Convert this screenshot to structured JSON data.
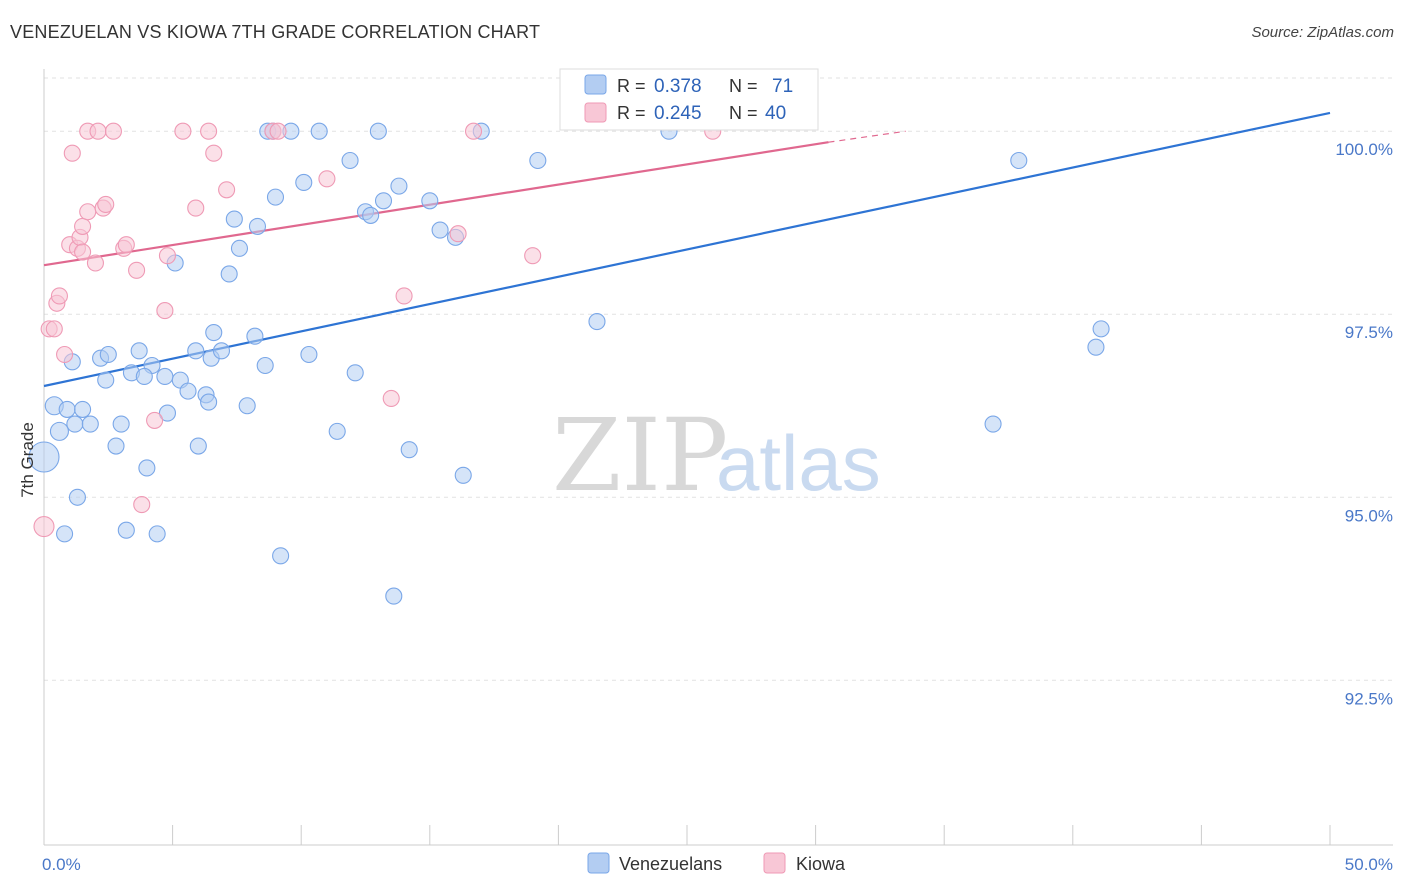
{
  "title": "VENEZUELAN VS KIOWA 7TH GRADE CORRELATION CHART",
  "source": "Source: ZipAtlas.com",
  "watermark": {
    "zip": "ZIP",
    "atlas": "atlas"
  },
  "chart_data": {
    "type": "scatter",
    "title": "VENEZUELAN VS KIOWA 7TH GRADE CORRELATION CHART",
    "xlabel": "",
    "ylabel": "7th Grade",
    "xlim": [
      0,
      50
    ],
    "ylim": [
      90.25,
      100.85
    ],
    "x_tick_labels": [
      {
        "value": 0,
        "label": "0.0%"
      },
      {
        "value": 50,
        "label": "50.0%"
      }
    ],
    "x_minor_ticks": [
      5,
      10,
      15,
      20,
      25,
      30,
      35,
      40,
      45
    ],
    "y_ticks": [
      {
        "value": 100.0,
        "label": "100.0%"
      },
      {
        "value": 97.5,
        "label": "97.5%"
      },
      {
        "value": 95.0,
        "label": "95.0%"
      },
      {
        "value": 92.5,
        "label": "92.5%"
      }
    ],
    "grid": true,
    "legend_placement": "top-center",
    "stats": [
      {
        "r_label": "R =",
        "r_value": "0.378",
        "n_label": "N =",
        "n_value": "71"
      },
      {
        "r_label": "R =",
        "r_value": "0.245",
        "n_label": "N =",
        "n_value": "40"
      }
    ],
    "series": [
      {
        "name": "Venezuelans",
        "color": "#7aa7e8",
        "fill": "#b3cdf2",
        "line_color": "#2e74d4",
        "trend": {
          "x0": 0,
          "y0": 96.52,
          "x1": 50,
          "y1": 100.25
        },
        "points": [
          [
            0.4,
            96.25,
            9
          ],
          [
            0.6,
            95.9,
            9
          ],
          [
            0.9,
            96.2,
            8
          ],
          [
            1.1,
            96.85,
            8
          ],
          [
            1.2,
            96.0,
            8
          ],
          [
            0.8,
            94.5,
            8
          ],
          [
            1.3,
            95.0,
            8
          ],
          [
            0.0,
            95.55,
            15
          ],
          [
            1.8,
            96.0,
            8
          ],
          [
            2.2,
            96.9,
            8
          ],
          [
            2.4,
            96.6,
            8
          ],
          [
            2.8,
            95.7,
            8
          ],
          [
            3.0,
            96.0,
            8
          ],
          [
            3.2,
            94.55,
            8
          ],
          [
            3.7,
            97.0,
            8
          ],
          [
            3.4,
            96.7,
            8
          ],
          [
            4.0,
            95.4,
            8
          ],
          [
            4.4,
            94.5,
            8
          ],
          [
            4.7,
            96.65,
            8
          ],
          [
            4.2,
            96.8,
            8
          ],
          [
            4.8,
            96.15,
            8
          ],
          [
            5.1,
            98.2,
            8
          ],
          [
            5.3,
            96.6,
            8
          ],
          [
            5.6,
            96.45,
            8
          ],
          [
            5.9,
            97.0,
            8
          ],
          [
            6.0,
            95.7,
            8
          ],
          [
            6.3,
            96.4,
            8
          ],
          [
            6.5,
            96.9,
            8
          ],
          [
            6.9,
            97.0,
            8
          ],
          [
            7.2,
            98.05,
            8
          ],
          [
            6.6,
            97.25,
            8
          ],
          [
            6.4,
            96.3,
            8
          ],
          [
            7.6,
            98.4,
            8
          ],
          [
            7.4,
            98.8,
            8
          ],
          [
            7.9,
            96.25,
            8
          ],
          [
            8.3,
            98.7,
            8
          ],
          [
            8.2,
            97.2,
            8
          ],
          [
            8.6,
            96.8,
            8
          ],
          [
            9.0,
            99.1,
            8
          ],
          [
            9.2,
            94.2,
            8
          ],
          [
            8.7,
            100.0,
            8
          ],
          [
            9.6,
            100.0,
            8
          ],
          [
            10.1,
            99.3,
            8
          ],
          [
            10.3,
            96.95,
            8
          ],
          [
            10.7,
            100.0,
            8
          ],
          [
            11.4,
            95.9,
            8
          ],
          [
            11.9,
            99.6,
            8
          ],
          [
            12.1,
            96.7,
            8
          ],
          [
            12.5,
            98.9,
            8
          ],
          [
            12.7,
            98.85,
            8
          ],
          [
            13.0,
            100.0,
            8
          ],
          [
            13.2,
            99.05,
            8
          ],
          [
            13.6,
            93.65,
            8
          ],
          [
            13.8,
            99.25,
            8
          ],
          [
            14.2,
            95.65,
            8
          ],
          [
            15.4,
            98.65,
            8
          ],
          [
            15.0,
            99.05,
            8
          ],
          [
            16.0,
            98.55,
            8
          ],
          [
            16.3,
            95.3,
            8
          ],
          [
            17.0,
            100.0,
            8
          ],
          [
            19.2,
            99.6,
            8
          ],
          [
            21.5,
            97.4,
            8
          ],
          [
            24.3,
            100.0,
            8
          ],
          [
            36.9,
            96.0,
            8
          ],
          [
            37.9,
            99.6,
            8
          ],
          [
            40.9,
            97.05,
            8
          ],
          [
            41.1,
            97.3,
            8
          ],
          [
            8.9,
            100.0,
            8
          ],
          [
            3.9,
            96.65,
            8
          ],
          [
            2.5,
            96.95,
            8
          ],
          [
            1.5,
            96.2,
            8
          ]
        ]
      },
      {
        "name": "Kiowa",
        "color": "#ef9ab5",
        "fill": "#f8c7d6",
        "line_color": "#e0688f",
        "trend": {
          "x0": 0,
          "y0": 98.17,
          "x1": 30.5,
          "y1": 99.85
        },
        "trend_dashed": {
          "x0": 30.5,
          "y0": 99.85,
          "x1": 33.5,
          "y1": 100.0
        },
        "points": [
          [
            0.0,
            94.6,
            10
          ],
          [
            0.2,
            97.3,
            8
          ],
          [
            0.4,
            97.3,
            8
          ],
          [
            0.5,
            97.65,
            8
          ],
          [
            0.6,
            97.75,
            8
          ],
          [
            0.8,
            96.95,
            8
          ],
          [
            1.0,
            98.45,
            8
          ],
          [
            1.1,
            99.7,
            8
          ],
          [
            1.3,
            98.4,
            8
          ],
          [
            1.4,
            98.55,
            8
          ],
          [
            1.5,
            98.7,
            8
          ],
          [
            1.5,
            98.35,
            8
          ],
          [
            1.7,
            98.9,
            8
          ],
          [
            2.0,
            98.2,
            8
          ],
          [
            2.3,
            98.95,
            8
          ],
          [
            2.4,
            99.0,
            8
          ],
          [
            1.7,
            100.0,
            8
          ],
          [
            2.1,
            100.0,
            8
          ],
          [
            2.7,
            100.0,
            8
          ],
          [
            3.1,
            98.4,
            8
          ],
          [
            3.2,
            98.45,
            8
          ],
          [
            3.6,
            98.1,
            8
          ],
          [
            3.8,
            94.9,
            8
          ],
          [
            4.3,
            96.05,
            8
          ],
          [
            4.7,
            97.55,
            8
          ],
          [
            4.8,
            98.3,
            8
          ],
          [
            5.4,
            100.0,
            8
          ],
          [
            5.9,
            98.95,
            8
          ],
          [
            6.4,
            100.0,
            8
          ],
          [
            6.6,
            99.7,
            8
          ],
          [
            7.1,
            99.2,
            8
          ],
          [
            8.9,
            100.0,
            8
          ],
          [
            9.1,
            100.0,
            8
          ],
          [
            11.0,
            99.35,
            8
          ],
          [
            13.5,
            96.35,
            8
          ],
          [
            14.0,
            97.75,
            8
          ],
          [
            16.1,
            98.6,
            8
          ],
          [
            16.7,
            100.0,
            8
          ],
          [
            19.0,
            98.3,
            8
          ],
          [
            26.0,
            100.0,
            8
          ]
        ]
      }
    ]
  }
}
